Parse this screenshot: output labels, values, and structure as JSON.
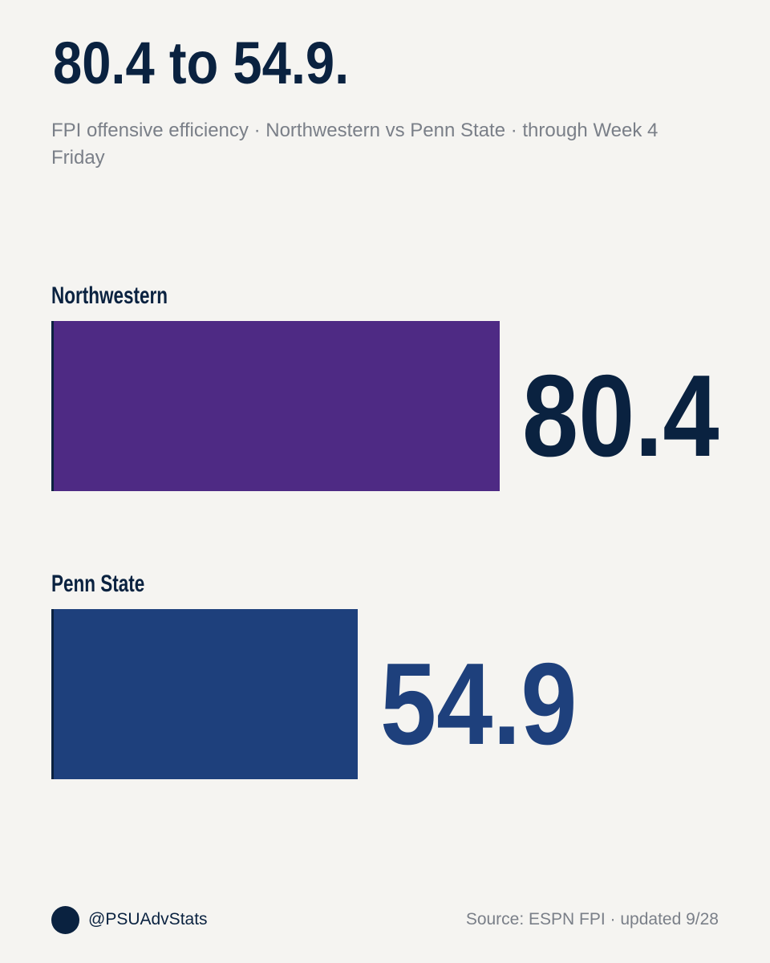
{
  "chart_data": {
    "type": "bar",
    "title": "80.4 to 54.9.",
    "subtitle": "FPI offensive efficiency · Northwestern vs Penn State · through Week 4 Friday",
    "categories": [
      "Northwestern",
      "Penn State"
    ],
    "values": [
      80.4,
      54.9
    ],
    "colors": [
      "#4e2a84",
      "#1e407c"
    ],
    "value_label_colors": [
      "#0a2240",
      "#1e407c"
    ],
    "handle": "@PSUAdvStats",
    "source": "Source: ESPN FPI · updated 9/28"
  }
}
